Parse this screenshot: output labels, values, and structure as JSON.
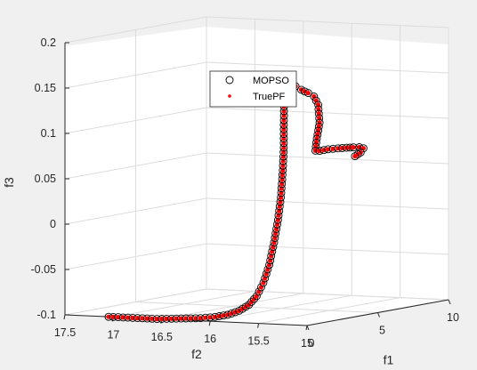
{
  "chart_data": {
    "type": "scatter",
    "projection": "3d",
    "xlabel": "f1",
    "ylabel": "f2",
    "zlabel": "f3",
    "f1_ticks": [
      "0",
      "5",
      "10"
    ],
    "f2_ticks": [
      "15",
      "15.5",
      "16",
      "16.5",
      "17",
      "17.5"
    ],
    "f3_ticks": [
      "-0.1",
      "-0.05",
      "0",
      "0.05",
      "0.1",
      "0.15",
      "0.2"
    ],
    "xlim": [
      0,
      10
    ],
    "ylim": [
      15,
      17.5
    ],
    "zlim": [
      -0.1,
      0.2
    ],
    "grid": true,
    "legend_location": "top-left inside",
    "series": [
      {
        "name": "MOPSO",
        "marker": "open-circle",
        "color": "#000000"
      },
      {
        "name": "TruePF",
        "marker": "dot",
        "color": "#ff0000"
      }
    ],
    "trajectory_points": [
      {
        "f1": 0.0,
        "f2": 17.05,
        "f3": -0.1
      },
      {
        "f1": 0.0,
        "f2": 16.95,
        "f3": -0.1
      },
      {
        "f1": 0.0,
        "f2": 16.85,
        "f3": -0.1
      },
      {
        "f1": 0.0,
        "f2": 16.7,
        "f3": -0.1
      },
      {
        "f1": 0.0,
        "f2": 16.55,
        "f3": -0.1
      },
      {
        "f1": 0.0,
        "f2": 16.4,
        "f3": -0.099
      },
      {
        "f1": 0.0,
        "f2": 16.25,
        "f3": -0.098
      },
      {
        "f1": 0.0,
        "f2": 16.1,
        "f3": -0.097
      },
      {
        "f1": 0.0,
        "f2": 15.95,
        "f3": -0.095
      },
      {
        "f1": 0.0,
        "f2": 15.82,
        "f3": -0.092
      },
      {
        "f1": 0.0,
        "f2": 15.7,
        "f3": -0.087
      },
      {
        "f1": 0.0,
        "f2": 15.6,
        "f3": -0.08
      },
      {
        "f1": 0.0,
        "f2": 15.52,
        "f3": -0.07
      },
      {
        "f1": 0.0,
        "f2": 15.45,
        "f3": -0.055
      },
      {
        "f1": 0.0,
        "f2": 15.39,
        "f3": -0.035
      },
      {
        "f1": 0.0,
        "f2": 15.34,
        "f3": -0.01
      },
      {
        "f1": 0.0,
        "f2": 15.3,
        "f3": 0.015
      },
      {
        "f1": 0.0,
        "f2": 15.27,
        "f3": 0.04
      },
      {
        "f1": 0.0,
        "f2": 15.25,
        "f3": 0.07
      },
      {
        "f1": 0.0,
        "f2": 15.24,
        "f3": 0.095
      },
      {
        "f1": 0.0,
        "f2": 15.24,
        "f3": 0.12
      },
      {
        "f1": 0.1,
        "f2": 15.25,
        "f3": 0.15
      },
      {
        "f1": 0.3,
        "f2": 15.25,
        "f3": 0.168
      },
      {
        "f1": 0.5,
        "f2": 15.25,
        "f3": 0.165
      },
      {
        "f1": 0.9,
        "f2": 15.25,
        "f3": 0.16
      },
      {
        "f1": 1.3,
        "f2": 15.25,
        "f3": 0.155
      },
      {
        "f1": 1.8,
        "f2": 15.25,
        "f3": 0.15
      },
      {
        "f1": 2.2,
        "f2": 15.25,
        "f3": 0.145
      },
      {
        "f1": 2.5,
        "f2": 15.25,
        "f3": 0.135
      },
      {
        "f1": 2.6,
        "f2": 15.25,
        "f3": 0.115
      },
      {
        "f1": 2.4,
        "f2": 15.25,
        "f3": 0.098
      },
      {
        "f1": 2.3,
        "f2": 15.25,
        "f3": 0.085
      },
      {
        "f1": 2.6,
        "f2": 15.25,
        "f3": 0.084
      },
      {
        "f1": 3.2,
        "f2": 15.25,
        "f3": 0.084
      },
      {
        "f1": 3.9,
        "f2": 15.25,
        "f3": 0.083
      },
      {
        "f1": 4.5,
        "f2": 15.25,
        "f3": 0.082
      },
      {
        "f1": 5.0,
        "f2": 15.25,
        "f3": 0.081
      },
      {
        "f1": 5.4,
        "f2": 15.25,
        "f3": 0.08
      },
      {
        "f1": 5.7,
        "f2": 15.25,
        "f3": 0.078
      },
      {
        "f1": 5.5,
        "f2": 15.25,
        "f3": 0.074
      },
      {
        "f1": 5.1,
        "f2": 15.25,
        "f3": 0.071
      }
    ]
  }
}
